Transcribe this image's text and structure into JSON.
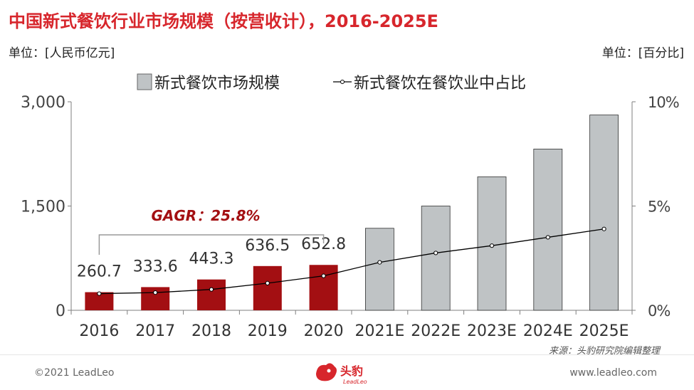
{
  "title": "中国新式餐饮行业市场规模（按营收计），2016-2025E",
  "unit_left": "单位：[人民币亿元]",
  "unit_right": "单位：[百分比]",
  "source": "来源：头豹研究院编辑整理",
  "copyright": "©2021 LeadLeo",
  "website": "www.leadleo.com",
  "logo": {
    "text": "头豹",
    "sub": "LeadLeo"
  },
  "colors": {
    "actual_bar": "#a30f12",
    "forecast_bar": "#bfc3c5",
    "line": "#000000",
    "gagr": "#a30f12",
    "title": "#d7262c"
  },
  "chart_data": {
    "type": "bar",
    "categories": [
      "2016",
      "2017",
      "2018",
      "2019",
      "2020",
      "2021E",
      "2022E",
      "2023E",
      "2024E",
      "2025E"
    ],
    "series": [
      {
        "name": "新式餐饮市场规模",
        "type": "bar",
        "axis": "left",
        "values": [
          260.7,
          333.6,
          443.3,
          636.5,
          652.8,
          1180,
          1500,
          1920,
          2320,
          2810
        ],
        "labels": [
          "260.7",
          "333.6",
          "443.3",
          "636.5",
          "652.8",
          "",
          "",
          "",
          "",
          ""
        ]
      },
      {
        "name": "新式餐饮在餐饮业中占比",
        "type": "line",
        "axis": "right",
        "values": [
          0.8,
          0.85,
          1.0,
          1.3,
          1.65,
          2.3,
          2.75,
          3.1,
          3.5,
          3.9
        ]
      }
    ],
    "left_axis": {
      "min": 0,
      "max": 3000,
      "ticks": [
        0,
        1500,
        3000
      ],
      "tick_labels": [
        "0",
        "1,500",
        "3,000"
      ]
    },
    "right_axis": {
      "min": 0,
      "max": 10,
      "ticks": [
        0,
        5,
        10
      ],
      "tick_labels": [
        "0%",
        "5%",
        "10%"
      ]
    },
    "annotation": {
      "text": "GAGR：25.8%",
      "from": "2016",
      "to": "2020"
    },
    "legend_position": "top",
    "grid": false
  }
}
